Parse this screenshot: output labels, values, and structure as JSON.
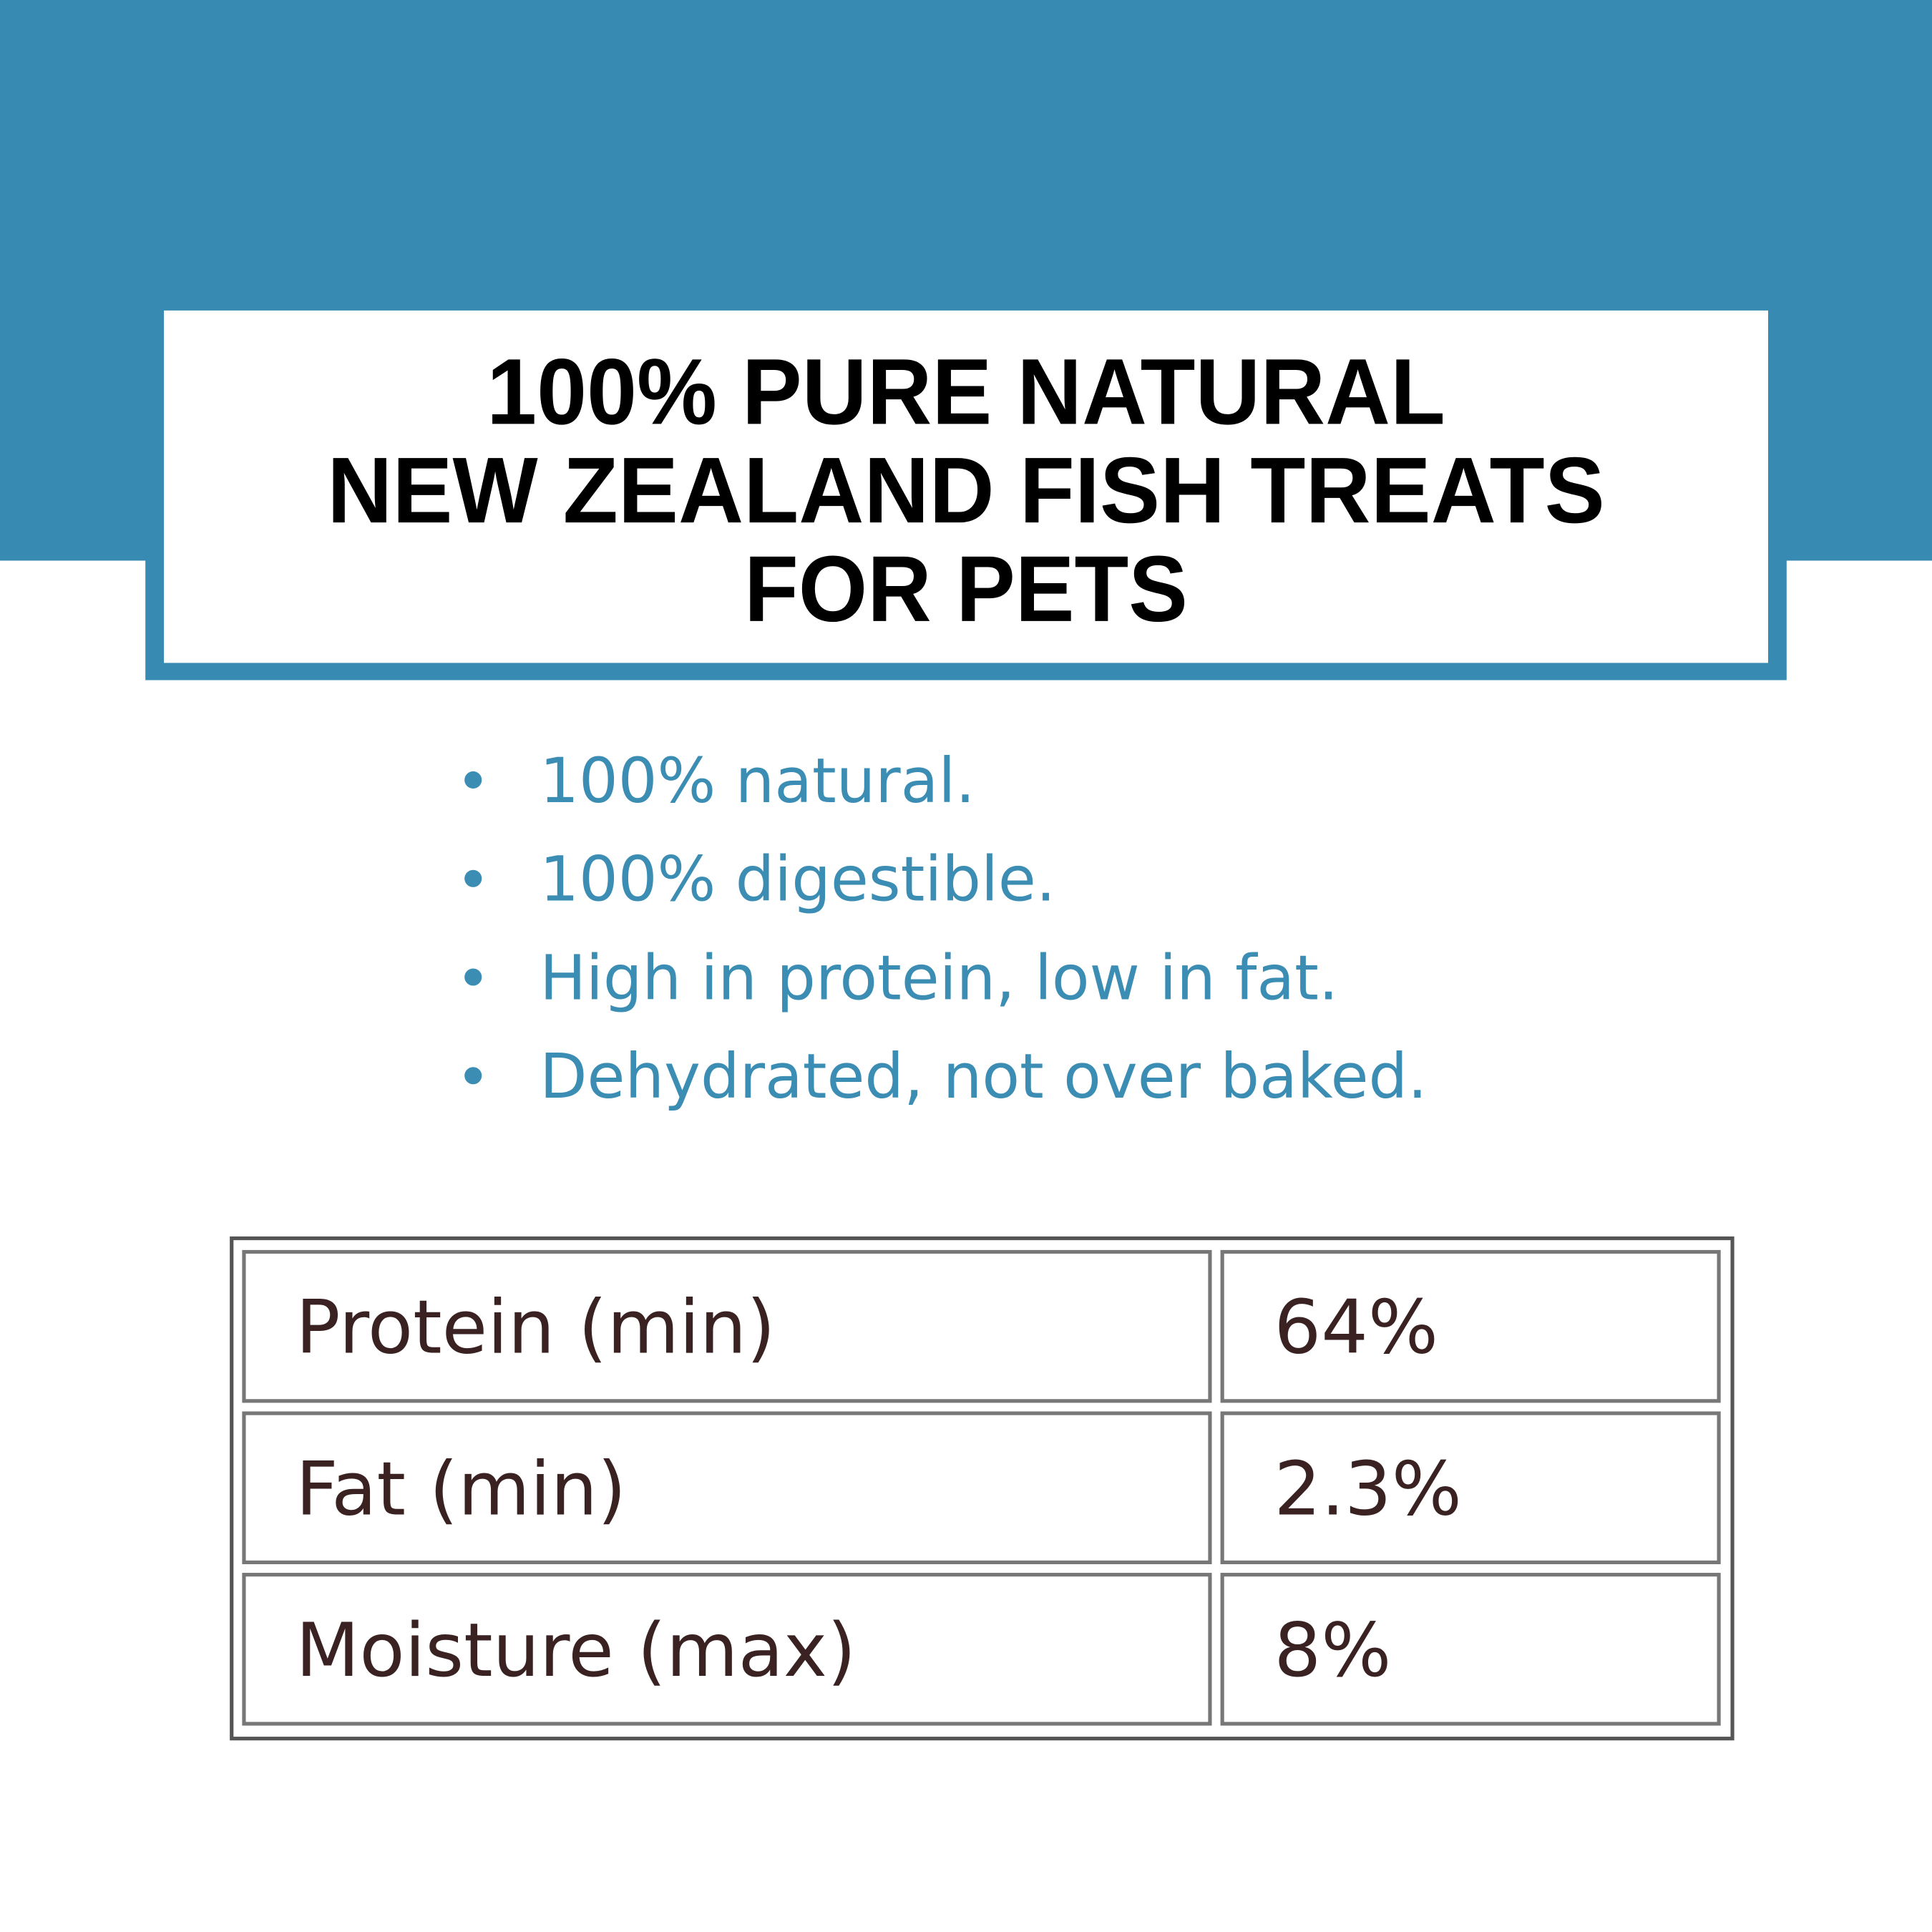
{
  "header": {
    "title_lines": [
      "100% PURE NATURAL",
      "NEW ZEALAND FISH TREATS",
      "FOR PETS"
    ]
  },
  "bullets": [
    "100% natural.",
    "100% digestible.",
    "High in protein, low in fat.",
    "Dehydrated, not over baked."
  ],
  "table": {
    "rows": [
      [
        "Protein (min)",
        "64%"
      ],
      [
        "Fat (min)",
        "2.3%"
      ],
      [
        "Moisture (max)",
        "8%"
      ]
    ]
  }
}
